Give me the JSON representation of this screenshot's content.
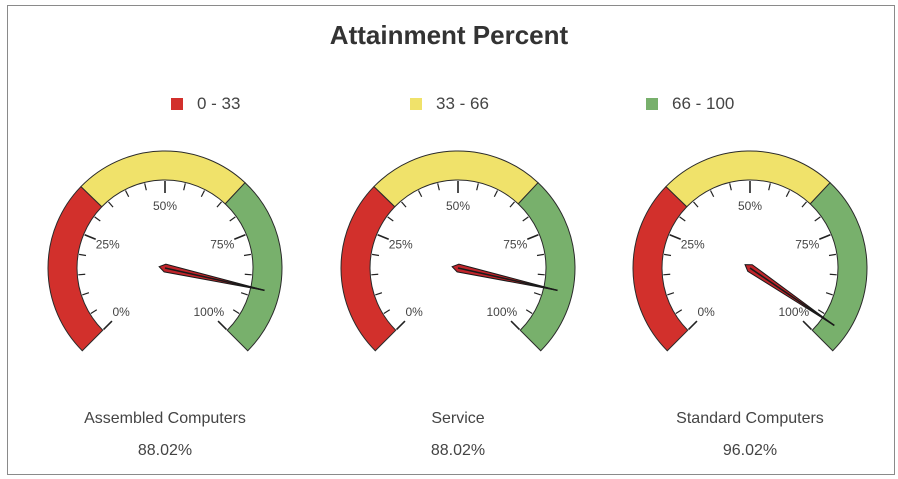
{
  "title": "Attainment Percent",
  "legend": [
    {
      "label": "0 - 33",
      "color": "#d2302c"
    },
    {
      "label": "33 - 66",
      "color": "#f0e26a"
    },
    {
      "label": "66 - 100",
      "color": "#78b06c"
    }
  ],
  "chart_data": {
    "type": "gauge",
    "title": "Attainment Percent",
    "scale": [
      0,
      100
    ],
    "tick_labels": [
      "0%",
      "25%",
      "50%",
      "75%",
      "100%"
    ],
    "bands": [
      {
        "range": [
          0,
          33
        ],
        "label": "0 - 33",
        "color": "#d2302c"
      },
      {
        "range": [
          33,
          66
        ],
        "label": "33 - 66",
        "color": "#f0e26a"
      },
      {
        "range": [
          66,
          100
        ],
        "label": "66 - 100",
        "color": "#78b06c"
      }
    ],
    "gauges": [
      {
        "name": "Assembled Computers",
        "value": 88.02,
        "value_label": "88.02%"
      },
      {
        "name": "Service",
        "value": 88.02,
        "value_label": "88.02%"
      },
      {
        "name": "Standard Computers",
        "value": 96.02,
        "value_label": "96.02%"
      }
    ]
  }
}
